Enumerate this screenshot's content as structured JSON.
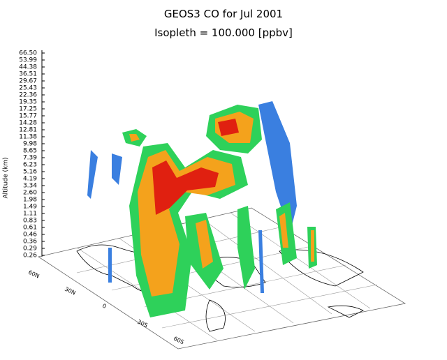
{
  "title": "GEOS3 CO for Jul 2001",
  "subtitle": "Isopleth = 100.000 [ppbv]",
  "altitude_axis": {
    "label": "Altitude (km)",
    "ticks": [
      "66.50",
      "53.99",
      "44.38",
      "36.51",
      "29.67",
      "25.43",
      "22.36",
      "19.35",
      "17.25",
      "15.77",
      "14.28",
      "12.81",
      "11.38",
      "9.98",
      "8.65",
      "7.39",
      "6.23",
      "5.16",
      "4.19",
      "3.34",
      "2.60",
      "1.98",
      "1.49",
      "1.11",
      "0.83",
      "0.61",
      "0.46",
      "0.36",
      "0.29",
      "0.26"
    ]
  },
  "latitude_labels": [
    "60N",
    "30N",
    "0",
    "30S",
    "60S"
  ]
}
